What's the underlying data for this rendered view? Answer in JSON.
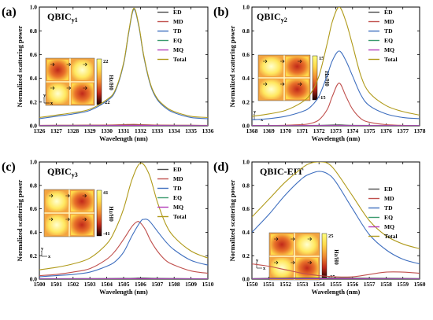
{
  "colors": {
    "ED": "#4d4d4d",
    "MD": "#c0504d",
    "TD": "#3f6fbf",
    "EQ": "#3a9a6e",
    "MQ": "#b13bb8",
    "Total": "#b09a1a"
  },
  "chart_data": [
    {
      "type": "line",
      "panel": "(a)",
      "title": "QBIC",
      "title_sub": "y1",
      "xlabel": "Wavelength (nm)",
      "ylabel": "Normalized scattering power",
      "xlim": [
        1326,
        1336
      ],
      "ylim": [
        0,
        1.0
      ],
      "xticks": [
        "1326",
        "1327",
        "1328",
        "1329",
        "1330",
        "1331",
        "1332",
        "1333",
        "1334",
        "1335",
        "1336"
      ],
      "yticks": [
        "0.0",
        "0.2",
        "0.4",
        "0.6",
        "0.8",
        "1.0"
      ],
      "legend_position": "top-right",
      "grid": false,
      "inset": {
        "field_label": "Hz/H0",
        "max": "22",
        "min": "-22",
        "axis_labels": [
          "y",
          "x"
        ]
      },
      "series": [
        {
          "name": "ED",
          "x": [
            1326,
            1328,
            1330,
            1331,
            1331.6,
            1332,
            1333,
            1334,
            1336
          ],
          "y": [
            0.003,
            0.004,
            0.005,
            0.008,
            0.01,
            0.008,
            0.005,
            0.004,
            0.003
          ]
        },
        {
          "name": "MD",
          "x": [
            1326,
            1328,
            1330,
            1331,
            1331.6,
            1332,
            1333,
            1334,
            1336
          ],
          "y": [
            0.004,
            0.005,
            0.006,
            0.01,
            0.012,
            0.01,
            0.006,
            0.005,
            0.004
          ]
        },
        {
          "name": "TD",
          "x": [
            1326,
            1327,
            1328,
            1329,
            1330,
            1330.5,
            1331,
            1331.3,
            1331.6,
            1331.9,
            1332.2,
            1332.6,
            1333,
            1333.5,
            1334,
            1335,
            1336
          ],
          "y": [
            0.06,
            0.08,
            0.1,
            0.13,
            0.21,
            0.29,
            0.52,
            0.78,
            0.98,
            0.84,
            0.58,
            0.34,
            0.22,
            0.15,
            0.11,
            0.07,
            0.06
          ]
        },
        {
          "name": "EQ",
          "x": [
            1326,
            1330,
            1331.6,
            1333,
            1336
          ],
          "y": [
            0.002,
            0.003,
            0.004,
            0.003,
            0.002
          ]
        },
        {
          "name": "MQ",
          "x": [
            1326,
            1330,
            1331.6,
            1333,
            1336
          ],
          "y": [
            0.001,
            0.002,
            0.003,
            0.002,
            0.001
          ]
        },
        {
          "name": "Total",
          "x": [
            1326,
            1327,
            1328,
            1329,
            1330,
            1330.5,
            1331,
            1331.3,
            1331.6,
            1331.9,
            1332.2,
            1332.6,
            1333,
            1333.5,
            1334,
            1335,
            1336
          ],
          "y": [
            0.07,
            0.09,
            0.11,
            0.14,
            0.22,
            0.3,
            0.53,
            0.79,
            0.99,
            0.85,
            0.59,
            0.35,
            0.23,
            0.16,
            0.12,
            0.08,
            0.07
          ]
        }
      ]
    },
    {
      "type": "line",
      "panel": "(b)",
      "title": "QBIC",
      "title_sub": "y2",
      "xlabel": "Wavelength (nm)",
      "ylabel": "Normalized scattering power",
      "xlim": [
        1368,
        1378
      ],
      "ylim": [
        0,
        1.0
      ],
      "xticks": [
        "1368",
        "1369",
        "1370",
        "1371",
        "1372",
        "1373",
        "1374",
        "1375",
        "1376",
        "1377",
        "1378"
      ],
      "yticks": [
        "0.0",
        "0.2",
        "0.4",
        "0.6",
        "0.8",
        "1.0"
      ],
      "legend_position": "top-right",
      "grid": false,
      "inset": {
        "field_label": "Hz/H0",
        "max": "15",
        "min": "-15",
        "axis_labels": [
          "y",
          "x"
        ]
      },
      "series": [
        {
          "name": "ED",
          "x": [
            1368,
            1372,
            1373.2,
            1374,
            1378
          ],
          "y": [
            0.002,
            0.004,
            0.008,
            0.004,
            0.002
          ]
        },
        {
          "name": "MD",
          "x": [
            1368,
            1370,
            1371,
            1371.5,
            1372,
            1372.5,
            1372.8,
            1373.2,
            1373.6,
            1374,
            1374.5,
            1375,
            1376,
            1378
          ],
          "y": [
            0.0,
            0.005,
            0.01,
            0.02,
            0.05,
            0.14,
            0.25,
            0.36,
            0.25,
            0.14,
            0.06,
            0.03,
            0.01,
            0.0
          ]
        },
        {
          "name": "TD",
          "x": [
            1368,
            1369,
            1370,
            1371,
            1371.5,
            1372,
            1372.5,
            1372.8,
            1373.2,
            1373.6,
            1374,
            1374.5,
            1375,
            1376,
            1377,
            1378
          ],
          "y": [
            0.05,
            0.06,
            0.08,
            0.12,
            0.16,
            0.25,
            0.43,
            0.55,
            0.63,
            0.55,
            0.42,
            0.26,
            0.17,
            0.1,
            0.07,
            0.06
          ]
        },
        {
          "name": "EQ",
          "x": [
            1368,
            1373.2,
            1378
          ],
          "y": [
            0.001,
            0.003,
            0.001
          ]
        },
        {
          "name": "MQ",
          "x": [
            1368,
            1373.2,
            1378
          ],
          "y": [
            0.001,
            0.002,
            0.001
          ]
        },
        {
          "name": "Total",
          "x": [
            1368,
            1369,
            1370,
            1371,
            1371.5,
            1372,
            1372.5,
            1372.8,
            1373.2,
            1373.6,
            1374,
            1374.5,
            1375,
            1376,
            1377,
            1378
          ],
          "y": [
            0.08,
            0.1,
            0.13,
            0.2,
            0.27,
            0.42,
            0.7,
            0.88,
            1.0,
            0.88,
            0.68,
            0.42,
            0.28,
            0.17,
            0.12,
            0.09
          ]
        }
      ]
    },
    {
      "type": "line",
      "panel": "(c)",
      "title": "QBIC",
      "title_sub": "y3",
      "xlabel": "Wavelength (nm)",
      "ylabel": "Normalized scattering power",
      "xlim": [
        1500,
        1510
      ],
      "ylim": [
        0,
        1.0
      ],
      "xticks": [
        "1500",
        "1501",
        "1502",
        "1503",
        "1504",
        "1505",
        "1506",
        "1507",
        "1508",
        "1509",
        "1510"
      ],
      "yticks": [
        "0.0",
        "0.2",
        "0.4",
        "0.6",
        "0.8",
        "1.0"
      ],
      "legend_position": "top-right",
      "grid": false,
      "inset": {
        "field_label": "Hz/H0",
        "max": "41",
        "min": "-41",
        "axis_labels": [
          "y",
          "x"
        ]
      },
      "series": [
        {
          "name": "ED",
          "x": [
            1500,
            1505,
            1506,
            1507,
            1510
          ],
          "y": [
            0.003,
            0.006,
            0.01,
            0.006,
            0.003
          ]
        },
        {
          "name": "MD",
          "x": [
            1500,
            1501,
            1502,
            1503,
            1504,
            1504.5,
            1505,
            1505.5,
            1505.8,
            1506,
            1506.3,
            1506.6,
            1507,
            1507.5,
            1508,
            1509,
            1510
          ],
          "y": [
            0.03,
            0.04,
            0.06,
            0.09,
            0.17,
            0.24,
            0.34,
            0.45,
            0.49,
            0.48,
            0.42,
            0.33,
            0.24,
            0.16,
            0.12,
            0.07,
            0.05
          ]
        },
        {
          "name": "TD",
          "x": [
            1500,
            1501,
            1502,
            1503,
            1504,
            1504.5,
            1505,
            1505.5,
            1506,
            1506.2,
            1506.5,
            1507,
            1507.5,
            1508,
            1509,
            1510
          ],
          "y": [
            0.02,
            0.03,
            0.04,
            0.06,
            0.11,
            0.15,
            0.23,
            0.37,
            0.49,
            0.51,
            0.5,
            0.41,
            0.32,
            0.25,
            0.16,
            0.12
          ]
        },
        {
          "name": "EQ",
          "x": [
            1500,
            1506,
            1510
          ],
          "y": [
            0.002,
            0.004,
            0.002
          ]
        },
        {
          "name": "MQ",
          "x": [
            1500,
            1506,
            1510
          ],
          "y": [
            0.001,
            0.003,
            0.001
          ]
        },
        {
          "name": "Total",
          "x": [
            1500,
            1501,
            1502,
            1503,
            1504,
            1504.5,
            1505,
            1505.5,
            1506,
            1506.5,
            1507,
            1507.5,
            1508,
            1509,
            1510
          ],
          "y": [
            0.08,
            0.1,
            0.13,
            0.18,
            0.3,
            0.42,
            0.6,
            0.85,
            0.99,
            0.9,
            0.66,
            0.47,
            0.36,
            0.24,
            0.18
          ]
        }
      ]
    },
    {
      "type": "line",
      "panel": "(d)",
      "title": "QBIC-EIT",
      "xlabel": "Wavelength (nm)",
      "ylabel": "Normalized scattering power",
      "xlim": [
        1550,
        1560
      ],
      "ylim": [
        0,
        1.0
      ],
      "xticks": [
        "1550",
        "1551",
        "1552",
        "1553",
        "1554",
        "1555",
        "1556",
        "1557",
        "1558",
        "1559",
        "1560"
      ],
      "yticks": [
        "0.0",
        "0.2",
        "0.4",
        "0.6",
        "0.8",
        "1.0"
      ],
      "legend_position": "right",
      "grid": false,
      "inset": {
        "field_label": "Hz/H0",
        "max": "25",
        "min": "-25",
        "axis_labels": [
          "y",
          "x"
        ]
      },
      "series": [
        {
          "name": "ED",
          "x": [
            1550,
            1554,
            1560
          ],
          "y": [
            0.005,
            0.01,
            0.005
          ]
        },
        {
          "name": "MD",
          "x": [
            1550,
            1551,
            1552,
            1553,
            1554,
            1555,
            1556,
            1557,
            1558,
            1559,
            1560
          ],
          "y": [
            0.13,
            0.11,
            0.08,
            0.05,
            0.03,
            0.02,
            0.02,
            0.04,
            0.06,
            0.06,
            0.05
          ]
        },
        {
          "name": "TD",
          "x": [
            1550,
            1551,
            1552,
            1553,
            1553.5,
            1554,
            1554.5,
            1555,
            1556,
            1557,
            1558,
            1559,
            1560
          ],
          "y": [
            0.4,
            0.55,
            0.72,
            0.86,
            0.9,
            0.92,
            0.9,
            0.83,
            0.6,
            0.38,
            0.25,
            0.17,
            0.13
          ]
        },
        {
          "name": "EQ",
          "x": [
            1550,
            1554,
            1560
          ],
          "y": [
            0.002,
            0.004,
            0.002
          ]
        },
        {
          "name": "MQ",
          "x": [
            1550,
            1554,
            1560
          ],
          "y": [
            0.001,
            0.003,
            0.001
          ]
        },
        {
          "name": "Total",
          "x": [
            1550,
            1551,
            1552,
            1553,
            1553.5,
            1554,
            1554.5,
            1555,
            1556,
            1557,
            1558,
            1559,
            1560
          ],
          "y": [
            0.53,
            0.68,
            0.83,
            0.95,
            0.99,
            1.0,
            0.99,
            0.92,
            0.71,
            0.5,
            0.37,
            0.3,
            0.26
          ]
        }
      ]
    }
  ]
}
